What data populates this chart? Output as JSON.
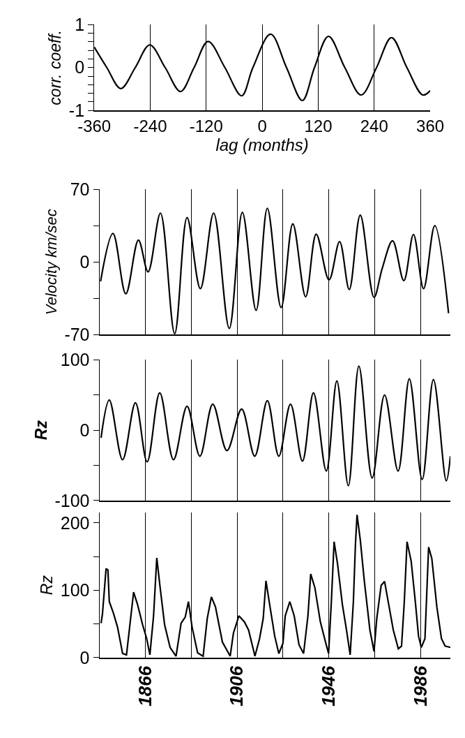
{
  "chart_data": [
    {
      "type": "line",
      "color": "#000000",
      "xlabel": "lag (months)",
      "ylabel": "corr. coeff.",
      "grid": "x",
      "xlim": [
        -360,
        360
      ],
      "xticks": [
        -360,
        -240,
        -120,
        0,
        120,
        240,
        360
      ],
      "ylim": [
        -1,
        1
      ],
      "yticks": [
        -1,
        {
          "value": -0.8,
          "label": null
        },
        {
          "value": -0.6,
          "label": null
        },
        {
          "value": -0.4,
          "label": null
        },
        {
          "value": -0.2,
          "label": null
        },
        0,
        {
          "value": 0.2,
          "label": null
        },
        {
          "value": 0.4,
          "label": null
        },
        {
          "value": 0.6,
          "label": null
        },
        {
          "value": 0.8,
          "label": null
        },
        1
      ],
      "x": [
        -360,
        -333,
        -303,
        -272,
        -241,
        -208,
        -175,
        -146,
        -116,
        -80,
        -44,
        -20,
        18,
        52,
        86,
        112,
        142,
        177,
        212,
        245,
        277,
        310,
        344,
        360
      ],
      "values": [
        0.48,
        0,
        -0.49,
        0,
        0.53,
        0,
        -0.56,
        0,
        0.61,
        0,
        -0.66,
        0,
        0.78,
        0,
        -0.77,
        0,
        0.73,
        0,
        -0.64,
        0,
        0.7,
        0,
        -0.64,
        -0.54
      ]
    },
    {
      "type": "line",
      "color": "#000000",
      "ylabel": "Velocity km/sec",
      "grid": "x",
      "tick_labels": "y",
      "xlim": [
        1846,
        1999
      ],
      "xticks": [
        1866,
        {
          "value": 1886,
          "label": null
        },
        1906,
        {
          "value": 1926,
          "label": null
        },
        1946,
        {
          "value": 1966,
          "label": null
        },
        1986
      ],
      "ylim": [
        -70,
        70
      ],
      "yticks": [
        -70,
        {
          "value": -35,
          "label": null
        },
        0,
        {
          "value": 35,
          "label": null
        },
        70
      ],
      "x": [
        1846.5,
        1851.9,
        1857.5,
        1863,
        1867.2,
        1872.6,
        1878.8,
        1884.2,
        1890,
        1895.8,
        1902.6,
        1908.3,
        1914.3,
        1919.2,
        1925.2,
        1930.3,
        1935.9,
        1940.5,
        1946.1,
        1950.7,
        1954.9,
        1959.7,
        1965.7,
        1969.3,
        1973.8,
        1978.7,
        1982.9,
        1987.3,
        1992.2,
        1998.2
      ],
      "values": [
        -18.7,
        27.4,
        -30.7,
        21,
        -9.5,
        47,
        -69,
        42.7,
        -25.7,
        47,
        -64,
        47.8,
        -46.6,
        51.7,
        -43.9,
        36.6,
        -33.5,
        26.8,
        -17.3,
        19.6,
        -26.5,
        45,
        -34,
        -6,
        20.4,
        -18,
        26.5,
        -25.7,
        35,
        -49.4
      ]
    },
    {
      "type": "line",
      "color": "#000000",
      "ylabel": "Rz",
      "grid": "x",
      "tick_labels": "y",
      "xlim": [
        1846,
        1999
      ],
      "xticks": [
        1866,
        {
          "value": 1886,
          "label": null
        },
        1906,
        {
          "value": 1926,
          "label": null
        },
        1946,
        {
          "value": 1966,
          "label": null
        },
        1986
      ],
      "ylim": [
        -100,
        100
      ],
      "yticks": [
        -100,
        {
          "value": -50,
          "label": null
        },
        0,
        {
          "value": 50,
          "label": null
        },
        100
      ],
      "x": [
        1846.7,
        1850.3,
        1856.1,
        1861.7,
        1866.8,
        1872.3,
        1878.3,
        1884.2,
        1889.8,
        1895.4,
        1901.6,
        1908,
        1913.7,
        1919.2,
        1924.2,
        1929.3,
        1934.5,
        1939.3,
        1944.9,
        1949.5,
        1954.5,
        1959.1,
        1964.9,
        1970.3,
        1976.2,
        1981.1,
        1986.7,
        1991.6,
        1997.2,
        1999
      ],
      "values": [
        -11,
        43,
        -42,
        39,
        -45,
        53,
        -42,
        34,
        -37,
        37,
        -29,
        30,
        -37,
        42,
        -37,
        37,
        -44,
        53,
        -58,
        70,
        -79,
        91,
        -68,
        50,
        -58,
        73,
        -70,
        72,
        -72,
        -37
      ]
    },
    {
      "type": "line",
      "color": "#000000",
      "ylabel": "Rz",
      "grid": "x",
      "xlim": [
        1846,
        1999
      ],
      "xticks": [
        1866,
        {
          "value": 1886,
          "label": null
        },
        1906,
        {
          "value": 1926,
          "label": null
        },
        1946,
        {
          "value": 1966,
          "label": null
        },
        1986
      ],
      "ylim": [
        0,
        215
      ],
      "yticks": [
        0,
        {
          "value": 50,
          "label": null
        },
        100,
        {
          "value": 150,
          "label": null
        },
        200
      ],
      "x": [
        1846.7,
        1847.3,
        1848.9,
        1849.7,
        1850.3,
        1852.1,
        1853.9,
        1856.1,
        1857.8,
        1859.3,
        1860.9,
        1862.6,
        1864.8,
        1866.6,
        1868,
        1869.6,
        1871,
        1872.6,
        1874.4,
        1876.8,
        1879.4,
        1881.6,
        1883.4,
        1884.8,
        1886.4,
        1888.8,
        1891.2,
        1893,
        1894.8,
        1896.6,
        1899.6,
        1903,
        1904.4,
        1906.8,
        1909.2,
        1911,
        1913.8,
        1915.8,
        1917.4,
        1918.6,
        1920,
        1922.4,
        1924.2,
        1926,
        1927,
        1929,
        1930.9,
        1933,
        1935,
        1936.9,
        1938.1,
        1939.9,
        1942.3,
        1944.7,
        1945.9,
        1947.1,
        1948.3,
        1949.8,
        1951.9,
        1953.7,
        1955.3,
        1956.7,
        1957.6,
        1958.3,
        1959.7,
        1961.5,
        1963.9,
        1965.7,
        1966.9,
        1968.8,
        1970.3,
        1972.3,
        1974.1,
        1976.3,
        1977.7,
        1978.9,
        1980.1,
        1981.9,
        1983.7,
        1985.1,
        1986.3,
        1987.9,
        1989.5,
        1990.9,
        1993.1,
        1995.1,
        1996.7,
        1999
      ],
      "values": [
        51,
        64,
        132,
        130,
        83,
        66,
        45,
        6,
        4,
        49,
        97,
        79,
        49,
        28,
        4,
        62,
        148,
        100,
        49,
        15,
        2,
        51,
        60,
        83,
        45,
        7,
        2,
        58,
        90,
        75,
        23,
        2,
        36,
        62,
        53,
        41,
        2,
        28,
        58,
        114,
        83,
        32,
        6,
        21,
        62,
        83,
        62,
        19,
        6,
        62,
        124,
        104,
        53,
        21,
        6,
        83,
        172,
        139,
        79,
        41,
        4,
        83,
        168,
        212,
        175,
        113,
        41,
        9,
        58,
        107,
        113,
        75,
        41,
        13,
        17,
        83,
        172,
        143,
        83,
        32,
        15,
        28,
        164,
        147,
        75,
        28,
        17,
        15
      ]
    }
  ]
}
